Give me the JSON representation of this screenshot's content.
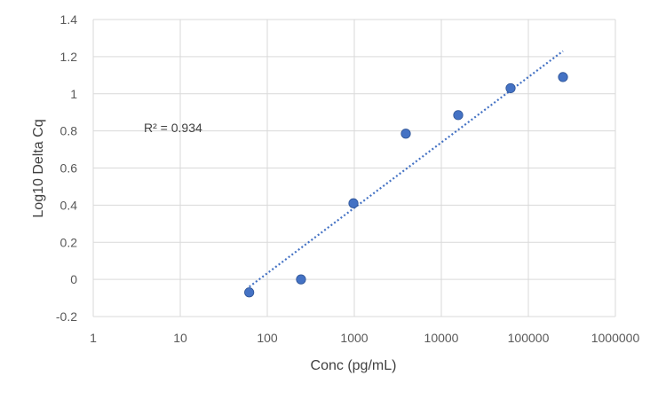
{
  "chart_data": {
    "type": "scatter",
    "xlabel": "Conc (pg/mL)",
    "ylabel": "Log10 Delta Cq",
    "x_scale": "log",
    "xlim": [
      1,
      1000000
    ],
    "ylim": [
      -0.2,
      1.4
    ],
    "x_ticks": [
      "1",
      "10",
      "100",
      "1000",
      "10000",
      "100000",
      "1000000"
    ],
    "y_ticks": [
      "-0.2",
      "0",
      "0.2",
      "0.4",
      "0.6",
      "0.8",
      "1",
      "1.2",
      "1.4"
    ],
    "grid": true,
    "series": [
      {
        "color": "#4472C4",
        "points": [
          {
            "x": 62,
            "y": -0.07
          },
          {
            "x": 244,
            "y": 0.0
          },
          {
            "x": 977,
            "y": 0.41
          },
          {
            "x": 3906,
            "y": 0.785
          },
          {
            "x": 15625,
            "y": 0.885
          },
          {
            "x": 62500,
            "y": 1.03
          },
          {
            "x": 250000,
            "y": 1.09
          }
        ]
      }
    ],
    "trendline": {
      "type": "linear-log",
      "color": "#4472C4",
      "style": "dotted",
      "from": {
        "x": 62,
        "y": -0.04
      },
      "to": {
        "x": 250000,
        "y": 1.23
      }
    },
    "annotation": "R² = 0.934"
  }
}
